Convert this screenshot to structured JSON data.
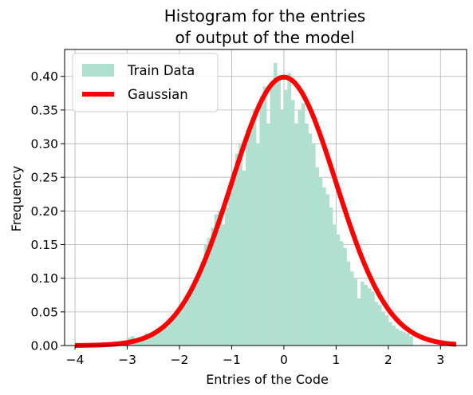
{
  "chart_data": {
    "type": "bar",
    "title_lines": [
      "Histogram for the entries",
      "of output of the model"
    ],
    "xlabel": "Entries of the Code",
    "ylabel": "Frequency",
    "xlim": [
      -4.2,
      3.5
    ],
    "ylim": [
      0,
      0.44
    ],
    "xticks": [
      -4,
      -3,
      -2,
      -1,
      0,
      1,
      2,
      3
    ],
    "xtick_labels": [
      "−4",
      "−3",
      "−2",
      "−1",
      "0",
      "1",
      "2",
      "3"
    ],
    "yticks": [
      0.0,
      0.05,
      0.1,
      0.15,
      0.2,
      0.25,
      0.3,
      0.35,
      0.4
    ],
    "ytick_labels": [
      "0.00",
      "0.05",
      "0.10",
      "0.15",
      "0.20",
      "0.25",
      "0.30",
      "0.35",
      "0.40"
    ],
    "grid": true,
    "legend_position": "top-left",
    "series": [
      {
        "name": "Train Data",
        "kind": "histogram",
        "color": "#b2e0d0",
        "bin_start": -3.0,
        "bin_width": 0.0667,
        "values": [
          0.012,
          0.014,
          0.008,
          0.01,
          0.012,
          0.018,
          0.015,
          0.02,
          0.025,
          0.022,
          0.03,
          0.028,
          0.035,
          0.045,
          0.05,
          0.055,
          0.06,
          0.07,
          0.08,
          0.09,
          0.11,
          0.125,
          0.15,
          0.16,
          0.175,
          0.195,
          0.2,
          0.18,
          0.205,
          0.23,
          0.26,
          0.285,
          0.3,
          0.26,
          0.32,
          0.33,
          0.35,
          0.3,
          0.37,
          0.385,
          0.33,
          0.39,
          0.42,
          0.395,
          0.35,
          0.38,
          0.405,
          0.365,
          0.33,
          0.35,
          0.36,
          0.33,
          0.315,
          0.3,
          0.265,
          0.25,
          0.235,
          0.225,
          0.205,
          0.18,
          0.165,
          0.155,
          0.145,
          0.125,
          0.11,
          0.1,
          0.07,
          0.095,
          0.09,
          0.085,
          0.08,
          0.065,
          0.06,
          0.05,
          0.045,
          0.035,
          0.03,
          0.025,
          0.022,
          0.02,
          0.018,
          0.014
        ]
      },
      {
        "name": "Gaussian",
        "kind": "line",
        "color": "#ff0000",
        "function": "standard normal pdf",
        "x_range": [
          -4.0,
          3.3
        ],
        "mean": 0,
        "std": 1
      }
    ]
  }
}
